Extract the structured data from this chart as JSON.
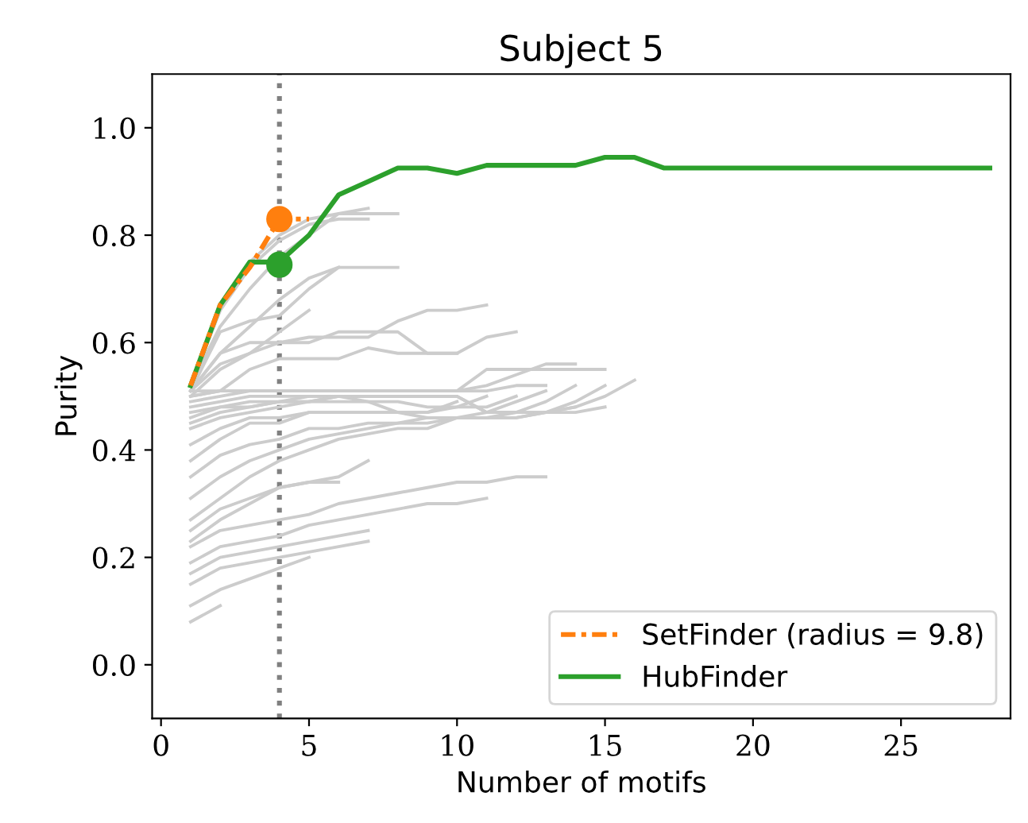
{
  "chart_data": {
    "type": "line",
    "title": "Subject 5",
    "xlabel": "Number of motifs",
    "ylabel": "Purity",
    "xlim": [
      -0.3,
      28.7
    ],
    "ylim": [
      -0.1,
      1.1
    ],
    "xticks": [
      0,
      5,
      10,
      15,
      20,
      25
    ],
    "yticks": [
      {
        "value": 0,
        "label": "0.0"
      },
      {
        "value": 0.2,
        "label": "0.2"
      },
      {
        "value": 0.4,
        "label": "0.4"
      },
      {
        "value": 0.6,
        "label": "0.6"
      },
      {
        "value": 0.8,
        "label": "0.8"
      },
      {
        "value": 1,
        "label": "1.0"
      }
    ],
    "grid": false,
    "legend": "bottom right",
    "ref_lines": [
      {
        "axis": "x",
        "value": 4,
        "color": "#808080",
        "line_style": "dotted"
      }
    ],
    "series": [
      {
        "color": "#cccccc",
        "x": [
          1,
          2,
          3,
          4,
          5,
          6,
          7,
          8
        ],
        "values": [
          0.52,
          0.67,
          0.75,
          0.8,
          0.83,
          0.84,
          0.84,
          0.84
        ]
      },
      {
        "color": "#cccccc",
        "x": [
          1,
          2,
          3,
          4,
          5,
          6,
          7
        ],
        "values": [
          0.52,
          0.66,
          0.74,
          0.79,
          0.82,
          0.83,
          0.83
        ]
      },
      {
        "color": "#cccccc",
        "x": [
          1,
          2,
          3,
          4,
          5,
          6,
          7
        ],
        "values": [
          0.52,
          0.63,
          0.7,
          0.76,
          0.8,
          0.84,
          0.85
        ]
      },
      {
        "color": "#cccccc",
        "x": [
          1,
          2,
          3,
          4,
          5,
          6,
          7,
          8
        ],
        "values": [
          0.51,
          0.62,
          0.64,
          0.65,
          0.7,
          0.74,
          0.74,
          0.74
        ]
      },
      {
        "color": "#cccccc",
        "x": [
          1,
          2,
          3,
          4,
          5,
          6
        ],
        "values": [
          0.51,
          0.58,
          0.63,
          0.68,
          0.72,
          0.74
        ]
      },
      {
        "color": "#cccccc",
        "x": [
          1,
          2,
          3,
          4,
          5
        ],
        "values": [
          0.5,
          0.55,
          0.58,
          0.62,
          0.66
        ]
      },
      {
        "color": "#cccccc",
        "x": [
          1,
          2,
          3,
          4,
          5,
          6,
          7,
          8,
          9,
          10,
          11
        ],
        "values": [
          0.51,
          0.58,
          0.6,
          0.6,
          0.61,
          0.61,
          0.61,
          0.64,
          0.66,
          0.66,
          0.67
        ]
      },
      {
        "color": "#cccccc",
        "x": [
          1,
          2,
          3,
          4,
          5,
          6,
          7,
          8,
          9,
          10,
          11,
          12
        ],
        "values": [
          0.51,
          0.56,
          0.58,
          0.6,
          0.6,
          0.62,
          0.62,
          0.62,
          0.58,
          0.58,
          0.61,
          0.62
        ]
      },
      {
        "color": "#cccccc",
        "x": [
          1,
          2,
          3,
          4,
          5,
          6,
          7,
          8,
          9,
          10
        ],
        "values": [
          0.5,
          0.51,
          0.55,
          0.57,
          0.57,
          0.57,
          0.59,
          0.58,
          0.58,
          0.58
        ]
      },
      {
        "color": "#cccccc",
        "x": [
          1,
          2,
          3,
          4,
          5,
          6,
          7,
          8,
          9,
          10,
          11,
          12,
          13,
          14,
          15
        ],
        "values": [
          0.51,
          0.51,
          0.51,
          0.51,
          0.51,
          0.51,
          0.51,
          0.51,
          0.51,
          0.51,
          0.55,
          0.55,
          0.55,
          0.55,
          0.55
        ]
      },
      {
        "color": "#cccccc",
        "x": [
          1,
          2,
          3,
          4,
          5,
          6,
          7,
          8,
          9,
          10,
          11,
          12,
          13,
          14
        ],
        "values": [
          0.5,
          0.51,
          0.51,
          0.51,
          0.51,
          0.51,
          0.51,
          0.51,
          0.51,
          0.51,
          0.52,
          0.54,
          0.56,
          0.56
        ]
      },
      {
        "color": "#cccccc",
        "x": [
          1,
          2,
          3,
          4,
          5,
          6,
          7,
          8,
          9,
          10,
          11,
          12,
          13
        ],
        "values": [
          0.49,
          0.5,
          0.51,
          0.51,
          0.51,
          0.51,
          0.51,
          0.51,
          0.51,
          0.51,
          0.51,
          0.52,
          0.52
        ]
      },
      {
        "color": "#cccccc",
        "x": [
          1,
          2,
          3,
          4,
          5,
          6,
          7,
          8,
          9,
          10,
          11,
          12,
          13,
          14,
          15,
          16
        ],
        "values": [
          0.48,
          0.49,
          0.5,
          0.5,
          0.5,
          0.5,
          0.5,
          0.5,
          0.5,
          0.5,
          0.47,
          0.47,
          0.47,
          0.48,
          0.5,
          0.53
        ]
      },
      {
        "color": "#cccccc",
        "x": [
          1,
          2,
          3,
          4,
          5,
          6,
          7,
          8,
          9,
          10,
          11,
          12,
          13,
          14,
          15
        ],
        "values": [
          0.47,
          0.48,
          0.49,
          0.49,
          0.5,
          0.5,
          0.5,
          0.5,
          0.5,
          0.5,
          0.47,
          0.47,
          0.47,
          0.49,
          0.52
        ]
      },
      {
        "color": "#cccccc",
        "x": [
          1,
          2,
          3,
          4,
          5,
          6,
          7,
          8,
          9,
          10,
          11,
          12,
          13,
          14
        ],
        "values": [
          0.46,
          0.48,
          0.48,
          0.49,
          0.49,
          0.5,
          0.5,
          0.5,
          0.5,
          0.5,
          0.47,
          0.47,
          0.49,
          0.52
        ]
      },
      {
        "color": "#cccccc",
        "x": [
          1,
          2,
          3,
          4,
          5,
          6,
          7,
          8,
          9,
          10,
          11,
          12,
          13
        ],
        "values": [
          0.45,
          0.47,
          0.48,
          0.49,
          0.49,
          0.5,
          0.49,
          0.47,
          0.46,
          0.46,
          0.47,
          0.49,
          0.51
        ]
      },
      {
        "color": "#cccccc",
        "x": [
          1,
          2,
          3,
          4,
          5,
          6,
          7,
          8,
          9,
          10,
          11,
          12
        ],
        "values": [
          0.44,
          0.46,
          0.47,
          0.48,
          0.49,
          0.49,
          0.49,
          0.49,
          0.48,
          0.48,
          0.48,
          0.5
        ]
      },
      {
        "color": "#cccccc",
        "x": [
          1,
          2,
          3,
          4,
          5,
          6,
          7,
          8,
          9,
          10,
          11
        ],
        "values": [
          0.41,
          0.44,
          0.46,
          0.46,
          0.47,
          0.47,
          0.47,
          0.47,
          0.47,
          0.48,
          0.5
        ]
      },
      {
        "color": "#cccccc",
        "x": [
          1,
          2,
          3,
          4,
          5,
          6,
          7,
          8,
          9,
          10
        ],
        "values": [
          0.38,
          0.42,
          0.45,
          0.45,
          0.47,
          0.47,
          0.47,
          0.47,
          0.47,
          0.49
        ]
      },
      {
        "color": "#cccccc",
        "x": [
          1,
          2,
          3,
          4,
          5,
          6,
          7,
          8,
          9,
          10,
          11,
          12,
          13,
          14,
          15
        ],
        "values": [
          0.35,
          0.39,
          0.41,
          0.42,
          0.44,
          0.44,
          0.45,
          0.45,
          0.46,
          0.46,
          0.46,
          0.46,
          0.47,
          0.47,
          0.48
        ]
      },
      {
        "color": "#cccccc",
        "x": [
          1,
          2,
          3,
          4,
          5,
          6,
          7,
          8,
          9,
          10,
          11,
          12,
          13,
          14
        ],
        "values": [
          0.31,
          0.35,
          0.38,
          0.4,
          0.42,
          0.43,
          0.44,
          0.45,
          0.45,
          0.46,
          0.46,
          0.46,
          0.47,
          0.48
        ]
      },
      {
        "color": "#cccccc",
        "x": [
          1,
          2,
          3,
          4,
          5,
          6,
          7,
          8,
          9,
          10,
          11,
          12
        ],
        "values": [
          0.27,
          0.31,
          0.35,
          0.38,
          0.4,
          0.42,
          0.43,
          0.44,
          0.44,
          0.46,
          0.46,
          0.47
        ]
      },
      {
        "color": "#cccccc",
        "x": [
          1,
          2,
          3,
          4,
          5,
          6,
          7
        ],
        "values": [
          0.25,
          0.29,
          0.31,
          0.33,
          0.34,
          0.35,
          0.38
        ]
      },
      {
        "color": "#cccccc",
        "x": [
          1,
          2,
          3,
          4,
          5,
          6
        ],
        "values": [
          0.23,
          0.27,
          0.3,
          0.33,
          0.34,
          0.34
        ]
      },
      {
        "color": "#cccccc",
        "x": [
          1,
          2,
          3,
          4,
          5,
          6,
          7,
          8,
          9,
          10,
          11,
          12,
          13
        ],
        "values": [
          0.22,
          0.25,
          0.26,
          0.27,
          0.28,
          0.3,
          0.31,
          0.32,
          0.33,
          0.34,
          0.34,
          0.35,
          0.35
        ]
      },
      {
        "color": "#cccccc",
        "x": [
          1,
          2,
          3,
          4,
          5,
          6,
          7,
          8,
          9,
          10,
          11
        ],
        "values": [
          0.19,
          0.22,
          0.23,
          0.24,
          0.26,
          0.27,
          0.28,
          0.29,
          0.3,
          0.3,
          0.31
        ]
      },
      {
        "color": "#cccccc",
        "x": [
          1,
          2,
          3,
          4,
          5,
          6,
          7
        ],
        "values": [
          0.17,
          0.2,
          0.21,
          0.22,
          0.23,
          0.24,
          0.25
        ]
      },
      {
        "color": "#cccccc",
        "x": [
          1,
          2,
          3,
          4,
          5,
          6,
          7
        ],
        "values": [
          0.15,
          0.18,
          0.19,
          0.2,
          0.21,
          0.22,
          0.23
        ]
      },
      {
        "color": "#cccccc",
        "x": [
          1,
          2,
          3,
          4,
          5
        ],
        "values": [
          0.11,
          0.14,
          0.16,
          0.18,
          0.2
        ]
      },
      {
        "color": "#cccccc",
        "x": [
          1,
          2
        ],
        "values": [
          0.08,
          0.11
        ]
      },
      {
        "name": "SetFinder (radius = 9.8)",
        "color": "#ff7f0e",
        "line_style": "dashdot",
        "x": [
          1,
          2,
          3,
          4,
          5
        ],
        "values": [
          0.52,
          0.67,
          0.74,
          0.83,
          0.83
        ]
      },
      {
        "name": "HubFinder",
        "color": "#2ca02c",
        "line_style": "solid",
        "x": [
          1,
          2,
          3,
          4,
          5,
          6,
          7,
          8,
          9,
          10,
          11,
          12,
          13,
          14,
          15,
          16,
          17,
          18,
          19,
          20,
          21,
          22,
          23,
          24,
          25,
          26,
          27,
          28
        ],
        "values": [
          0.52,
          0.67,
          0.75,
          0.75,
          0.8,
          0.875,
          0.9,
          0.925,
          0.925,
          0.915,
          0.93,
          0.93,
          0.93,
          0.93,
          0.945,
          0.945,
          0.925,
          0.925,
          0.925,
          0.925,
          0.925,
          0.925,
          0.925,
          0.925,
          0.925,
          0.925,
          0.925,
          0.925
        ]
      },
      {
        "type": "scatter",
        "marker": "circle",
        "color": "#ff7f0e",
        "x": [
          4
        ],
        "values": [
          0.83
        ]
      },
      {
        "type": "scatter",
        "marker": "circle",
        "color": "#2ca02c",
        "x": [
          4
        ],
        "values": [
          0.745
        ]
      }
    ]
  }
}
